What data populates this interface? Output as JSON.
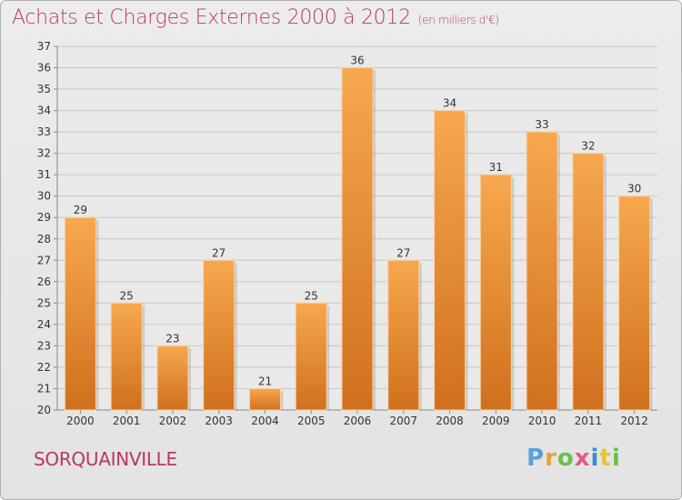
{
  "title": "Achats et Charges Externes 2000 à 2012",
  "subtitle": "(en milliers d'€)",
  "town": "SORQUAINVILLE",
  "logo": {
    "letters": [
      "P",
      "r",
      "o",
      "x",
      "i",
      "t",
      "i"
    ]
  },
  "colors": {
    "bar_light": "#f7a84e",
    "bar_dark": "#d0701e",
    "title": "#b73a5b",
    "grid": "#c8c8c8"
  },
  "chart_data": {
    "type": "bar",
    "categories": [
      "2000",
      "2001",
      "2002",
      "2003",
      "2004",
      "2005",
      "2006",
      "2007",
      "2008",
      "2009",
      "2010",
      "2011",
      "2012"
    ],
    "values": [
      29,
      25,
      23,
      27,
      21,
      25,
      36,
      27,
      34,
      31,
      33,
      32,
      30
    ],
    "ylim": [
      20,
      37
    ],
    "yticks": [
      20,
      21,
      22,
      23,
      24,
      25,
      26,
      27,
      28,
      29,
      30,
      31,
      32,
      33,
      34,
      35,
      36,
      37
    ],
    "grid": true
  }
}
